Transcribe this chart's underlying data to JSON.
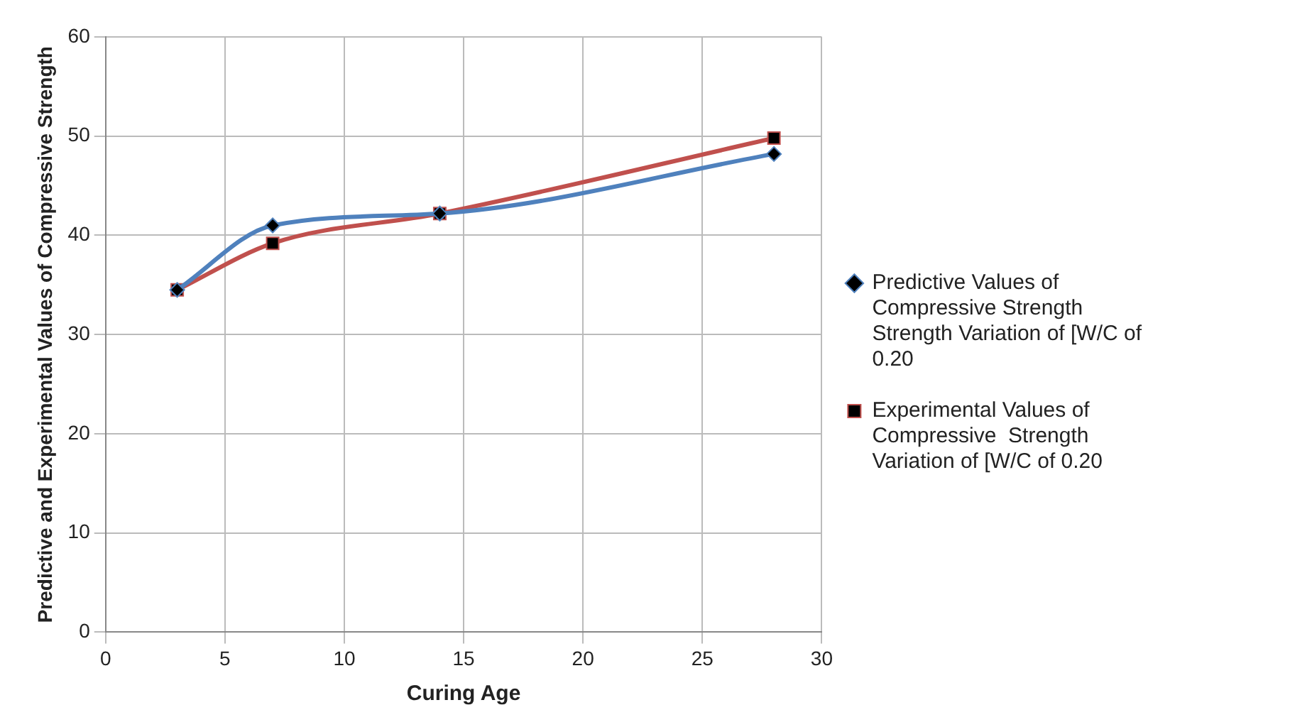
{
  "chart_data": {
    "type": "line",
    "xlabel": "Curing Age",
    "ylabel": "Predictive and Experimental Values of Compressive Strength",
    "x": [
      3,
      7,
      14,
      28
    ],
    "series": [
      {
        "name": "Predictive Values of Compressive Strength Strength Variation of [W/C of 0.20",
        "color": "#4f81bd",
        "values": [
          34.5,
          41,
          42.2,
          48.2
        ],
        "marker": "diamond"
      },
      {
        "name": "Experimental Values of Compressive  Strength Variation of [W/C of 0.20",
        "color": "#c0504d",
        "values": [
          34.5,
          39.2,
          42.2,
          49.8
        ],
        "marker": "square"
      }
    ],
    "xlim": [
      0,
      30
    ],
    "xticks": [
      0,
      5,
      10,
      15,
      20,
      25,
      30
    ],
    "ylim": [
      0,
      60
    ],
    "yticks": [
      0,
      10,
      20,
      30,
      40,
      50,
      60
    ],
    "grid": true,
    "legend": "right"
  }
}
